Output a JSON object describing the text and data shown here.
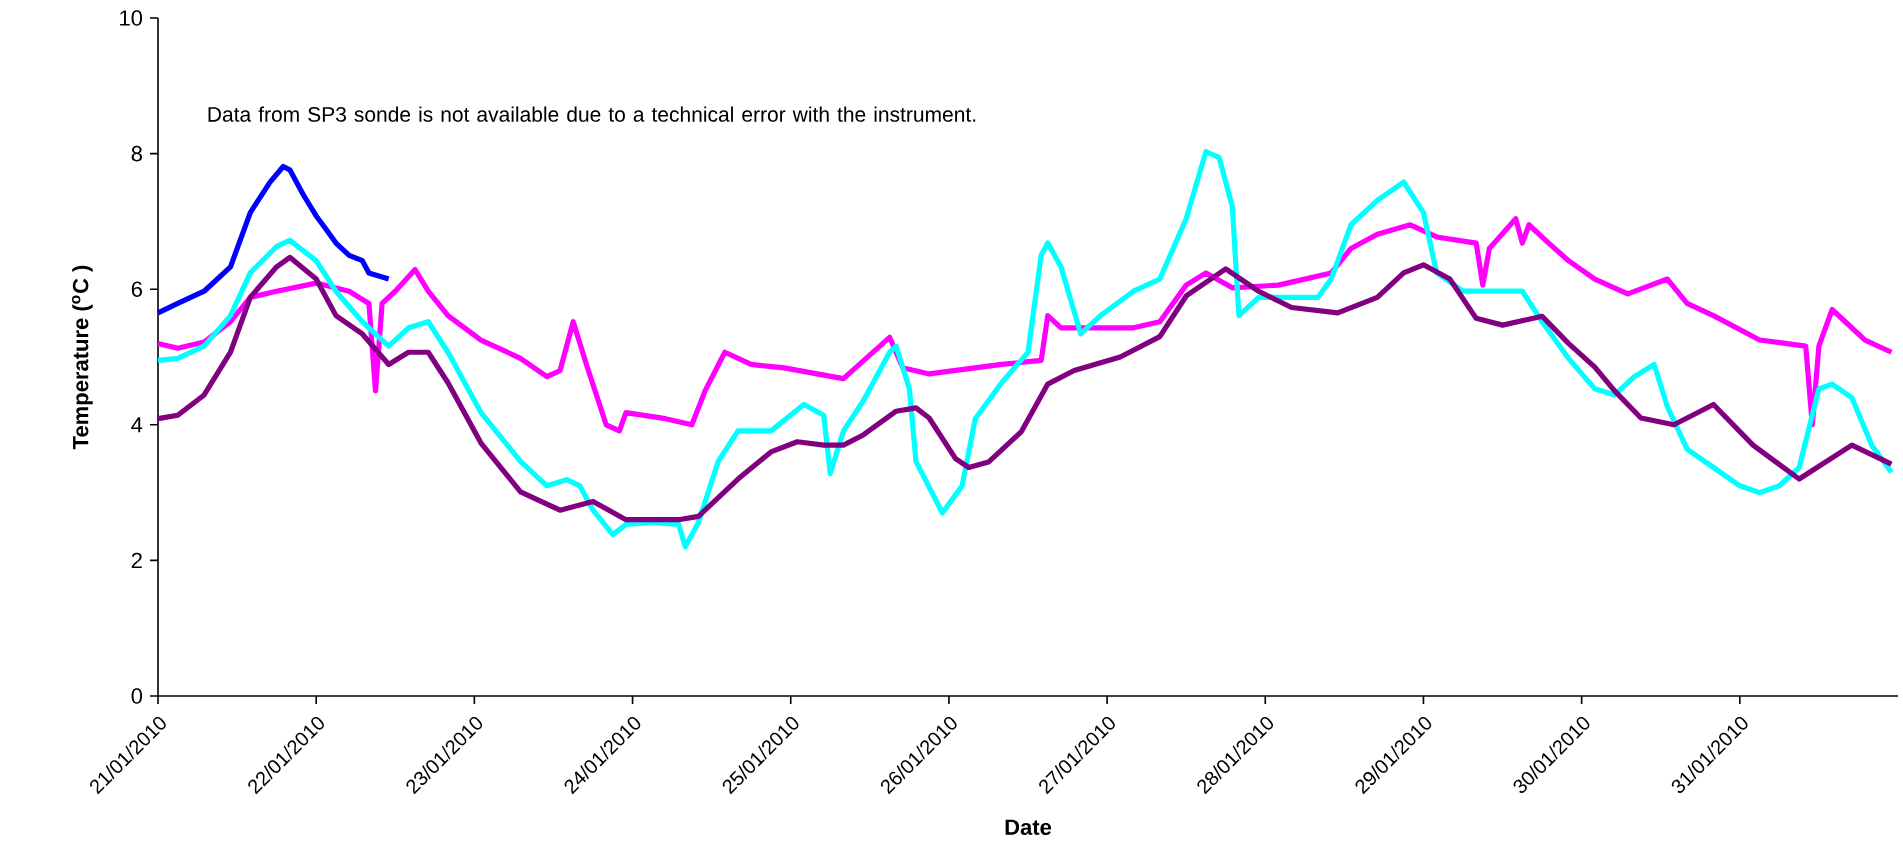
{
  "chart_data": {
    "type": "line",
    "xlabel": "Date",
    "ylabel": "Temperature ($^{o}$C )",
    "annotations": [
      "Data from SP3 sonde is not available due to a technical error with the instrument."
    ],
    "xlim": [
      "2010-01-21",
      "2010-02-01"
    ],
    "xticks": [
      {
        "value": "2010-01-21",
        "label": "21/01/2010"
      },
      {
        "value": "2010-01-22",
        "label": "22/01/2010"
      },
      {
        "value": "2010-01-23",
        "label": "23/01/2010"
      },
      {
        "value": "2010-01-24",
        "label": "24/01/2010"
      },
      {
        "value": "2010-01-25",
        "label": "25/01/2010"
      },
      {
        "value": "2010-01-26",
        "label": "26/01/2010"
      },
      {
        "value": "2010-01-27",
        "label": "27/01/2010"
      },
      {
        "value": "2010-01-28",
        "label": "28/01/2010"
      },
      {
        "value": "2010-01-29",
        "label": "29/01/2010"
      },
      {
        "value": "2010-01-30",
        "label": "30/01/2010"
      },
      {
        "value": "2010-01-31",
        "label": "31/01/2010"
      }
    ],
    "ylim": [
      0,
      10
    ],
    "yticks": [
      0,
      2,
      4,
      6,
      8,
      10
    ],
    "series": [
      {
        "color": "#0000ff",
        "x": [
          "2010-01-21T00:00",
          "2010-01-21T03:00",
          "2010-01-21T07:00",
          "2010-01-21T11:00",
          "2010-01-21T14:00",
          "2010-01-21T17:00",
          "2010-01-21T19:00",
          "2010-01-21T20:00",
          "2010-01-21T22:00",
          "2010-01-22T00:00",
          "2010-01-22T01:00",
          "2010-01-22T03:00",
          "2010-01-22T05:00",
          "2010-01-22T07:00",
          "2010-01-22T08:00",
          "2010-01-22T11:00"
        ],
        "values": [
          5.65,
          5.79,
          5.97,
          6.33,
          7.13,
          7.58,
          7.81,
          7.76,
          7.4,
          7.08,
          6.95,
          6.68,
          6.5,
          6.42,
          6.24,
          6.15
        ]
      },
      {
        "color": "#ff00ff",
        "x": [
          "2010-01-21T00:00",
          "2010-01-21T03:00",
          "2010-01-21T07:00",
          "2010-01-21T11:00",
          "2010-01-21T14:00",
          "2010-01-21T18:00",
          "2010-01-22T00:00",
          "2010-01-22T05:00",
          "2010-01-22T08:00",
          "2010-01-22T09:00",
          "2010-01-22T10:00",
          "2010-01-22T12:00",
          "2010-01-22T15:00",
          "2010-01-22T17:00",
          "2010-01-22T20:00",
          "2010-01-23T01:00",
          "2010-01-23T07:00",
          "2010-01-23T11:00",
          "2010-01-23T13:00",
          "2010-01-23T15:00",
          "2010-01-23T17:00",
          "2010-01-23T20:00",
          "2010-01-23T22:00",
          "2010-01-23T23:00",
          "2010-01-24T05:00",
          "2010-01-24T09:00",
          "2010-01-24T11:00",
          "2010-01-24T14:00",
          "2010-01-24T18:00",
          "2010-01-24T23:00",
          "2010-01-25T08:00",
          "2010-01-25T15:00",
          "2010-01-25T17:00",
          "2010-01-25T21:00",
          "2010-01-26T08:00",
          "2010-01-26T14:00",
          "2010-01-26T15:00",
          "2010-01-26T17:00",
          "2010-01-27T04:00",
          "2010-01-27T08:00",
          "2010-01-27T12:00",
          "2010-01-27T15:00",
          "2010-01-27T19:00",
          "2010-01-28T02:00",
          "2010-01-28T10:00",
          "2010-01-28T13:00",
          "2010-01-28T17:00",
          "2010-01-28T22:00",
          "2010-01-29T02:00",
          "2010-01-29T08:00",
          "2010-01-29T09:00",
          "2010-01-29T10:00",
          "2010-01-29T14:00",
          "2010-01-29T15:00",
          "2010-01-29T16:00",
          "2010-01-29T19:00",
          "2010-01-29T22:00",
          "2010-01-30T02:00",
          "2010-01-30T07:00",
          "2010-01-30T13:00",
          "2010-01-30T16:00",
          "2010-01-30T20:00",
          "2010-01-31T03:00",
          "2010-01-31T10:00",
          "2010-01-31T11:00",
          "2010-01-31T12:00",
          "2010-01-31T14:00",
          "2010-01-31T16:00",
          "2010-01-31T19:00",
          "2010-01-31T23:00"
        ],
        "values": [
          5.2,
          5.13,
          5.22,
          5.52,
          5.88,
          5.97,
          6.09,
          5.97,
          5.79,
          4.5,
          5.79,
          5.97,
          6.29,
          5.97,
          5.61,
          5.25,
          4.98,
          4.71,
          4.8,
          5.52,
          4.89,
          4.0,
          3.91,
          4.18,
          4.09,
          4.0,
          4.5,
          5.07,
          4.89,
          4.84,
          4.68,
          5.29,
          4.84,
          4.75,
          4.89,
          4.95,
          5.61,
          5.43,
          5.43,
          5.52,
          6.06,
          6.24,
          6.02,
          6.06,
          6.24,
          6.6,
          6.81,
          6.95,
          6.77,
          6.68,
          6.06,
          6.6,
          7.04,
          6.68,
          6.95,
          6.68,
          6.42,
          6.15,
          5.93,
          6.15,
          5.79,
          5.61,
          5.25,
          5.16,
          4.0,
          5.16,
          5.7,
          5.52,
          5.25,
          5.07
        ]
      },
      {
        "color": "#00ffff",
        "x": [
          "2010-01-21T00:00",
          "2010-01-21T03:00",
          "2010-01-21T07:00",
          "2010-01-21T11:00",
          "2010-01-21T14:00",
          "2010-01-21T18:00",
          "2010-01-21T20:00",
          "2010-01-22T00:00",
          "2010-01-22T03:00",
          "2010-01-22T07:00",
          "2010-01-22T11:00",
          "2010-01-22T14:00",
          "2010-01-22T17:00",
          "2010-01-22T20:00",
          "2010-01-23T01:00",
          "2010-01-23T07:00",
          "2010-01-23T11:00",
          "2010-01-23T14:00",
          "2010-01-23T16:00",
          "2010-01-23T18:00",
          "2010-01-23T21:00",
          "2010-01-23T23:00",
          "2010-01-24T03:00",
          "2010-01-24T07:00",
          "2010-01-24T08:00",
          "2010-01-24T10:00",
          "2010-01-24T13:00",
          "2010-01-24T16:00",
          "2010-01-24T21:00",
          "2010-01-25T02:00",
          "2010-01-25T05:00",
          "2010-01-25T06:00",
          "2010-01-25T08:00",
          "2010-01-25T11:00",
          "2010-01-25T15:00",
          "2010-01-25T16:00",
          "2010-01-25T18:00",
          "2010-01-25T19:00",
          "2010-01-25T23:00",
          "2010-01-26T02:00",
          "2010-01-26T04:00",
          "2010-01-26T08:00",
          "2010-01-26T12:00",
          "2010-01-26T14:00",
          "2010-01-26T15:00",
          "2010-01-26T17:00",
          "2010-01-26T20:00",
          "2010-01-26T23:00",
          "2010-01-27T04:00",
          "2010-01-27T08:00",
          "2010-01-27T12:00",
          "2010-01-27T15:00",
          "2010-01-27T17:00",
          "2010-01-27T19:00",
          "2010-01-27T20:00",
          "2010-01-27T23:00",
          "2010-01-28T08:00",
          "2010-01-28T10:00",
          "2010-01-28T13:00",
          "2010-01-28T17:00",
          "2010-01-28T21:00",
          "2010-01-29T00:00",
          "2010-01-29T02:00",
          "2010-01-29T06:00",
          "2010-01-29T15:00",
          "2010-01-29T18:00",
          "2010-01-29T22:00",
          "2010-01-30T02:00",
          "2010-01-30T05:00",
          "2010-01-30T08:00",
          "2010-01-30T11:00",
          "2010-01-30T13:00",
          "2010-01-30T16:00",
          "2010-01-30T20:00",
          "2010-01-31T00:00",
          "2010-01-31T03:00",
          "2010-01-31T06:00",
          "2010-01-31T09:00",
          "2010-01-31T12:00",
          "2010-01-31T14:00",
          "2010-01-31T17:00",
          "2010-01-31T20:00",
          "2010-01-31T23:00"
        ],
        "values": [
          4.95,
          4.98,
          5.16,
          5.61,
          6.24,
          6.63,
          6.72,
          6.42,
          5.97,
          5.52,
          5.16,
          5.43,
          5.52,
          5.07,
          4.18,
          3.46,
          3.1,
          3.19,
          3.1,
          2.74,
          2.38,
          2.53,
          2.56,
          2.53,
          2.2,
          2.56,
          3.46,
          3.91,
          3.91,
          4.3,
          4.14,
          3.28,
          3.91,
          4.35,
          5.07,
          5.16,
          4.53,
          3.46,
          2.7,
          3.1,
          4.09,
          4.62,
          5.07,
          6.5,
          6.68,
          6.33,
          5.34,
          5.61,
          5.97,
          6.15,
          7.04,
          8.03,
          7.94,
          7.22,
          5.61,
          5.88,
          5.88,
          6.15,
          6.95,
          7.31,
          7.58,
          7.13,
          6.24,
          5.97,
          5.97,
          5.52,
          4.98,
          4.53,
          4.44,
          4.71,
          4.89,
          4.27,
          3.64,
          3.37,
          3.1,
          3.0,
          3.1,
          3.37,
          4.53,
          4.6,
          4.4,
          3.7,
          3.3
        ]
      },
      {
        "color": "#800080",
        "x": [
          "2010-01-21T00:00",
          "2010-01-21T03:00",
          "2010-01-21T07:00",
          "2010-01-21T11:00",
          "2010-01-21T14:00",
          "2010-01-21T18:00",
          "2010-01-21T20:00",
          "2010-01-22T00:00",
          "2010-01-22T03:00",
          "2010-01-22T07:00",
          "2010-01-22T11:00",
          "2010-01-22T14:00",
          "2010-01-22T17:00",
          "2010-01-22T20:00",
          "2010-01-23T01:00",
          "2010-01-23T07:00",
          "2010-01-23T13:00",
          "2010-01-23T18:00",
          "2010-01-23T23:00",
          "2010-01-24T07:00",
          "2010-01-24T10:00",
          "2010-01-24T16:00",
          "2010-01-24T21:00",
          "2010-01-25T01:00",
          "2010-01-25T05:00",
          "2010-01-25T08:00",
          "2010-01-25T11:00",
          "2010-01-25T16:00",
          "2010-01-25T19:00",
          "2010-01-25T21:00",
          "2010-01-26T01:00",
          "2010-01-26T03:00",
          "2010-01-26T06:00",
          "2010-01-26T11:00",
          "2010-01-26T15:00",
          "2010-01-26T19:00",
          "2010-01-27T02:00",
          "2010-01-27T08:00",
          "2010-01-27T12:00",
          "2010-01-27T18:00",
          "2010-01-27T23:00",
          "2010-01-28T04:00",
          "2010-01-28T11:00",
          "2010-01-28T17:00",
          "2010-01-28T21:00",
          "2010-01-29T00:00",
          "2010-01-29T04:00",
          "2010-01-29T08:00",
          "2010-01-29T12:00",
          "2010-01-29T18:00",
          "2010-01-29T22:00",
          "2010-01-30T02:00",
          "2010-01-30T05:00",
          "2010-01-30T09:00",
          "2010-01-30T14:00",
          "2010-01-30T20:00",
          "2010-01-31T02:00",
          "2010-01-31T09:00",
          "2010-01-31T17:00",
          "2010-01-31T23:00"
        ],
        "values": [
          4.09,
          4.14,
          4.44,
          5.07,
          5.88,
          6.33,
          6.47,
          6.15,
          5.61,
          5.34,
          4.89,
          5.07,
          5.07,
          4.62,
          3.73,
          3.01,
          2.74,
          2.87,
          2.6,
          2.6,
          2.65,
          3.2,
          3.6,
          3.75,
          3.7,
          3.7,
          3.85,
          4.2,
          4.25,
          4.1,
          3.5,
          3.37,
          3.45,
          3.9,
          4.6,
          4.8,
          5.0,
          5.3,
          5.9,
          6.3,
          5.97,
          5.73,
          5.65,
          5.88,
          6.24,
          6.36,
          6.15,
          5.57,
          5.47,
          5.6,
          5.2,
          4.85,
          4.5,
          4.1,
          4.0,
          4.3,
          3.7,
          3.2,
          3.7,
          3.42
        ]
      }
    ]
  }
}
